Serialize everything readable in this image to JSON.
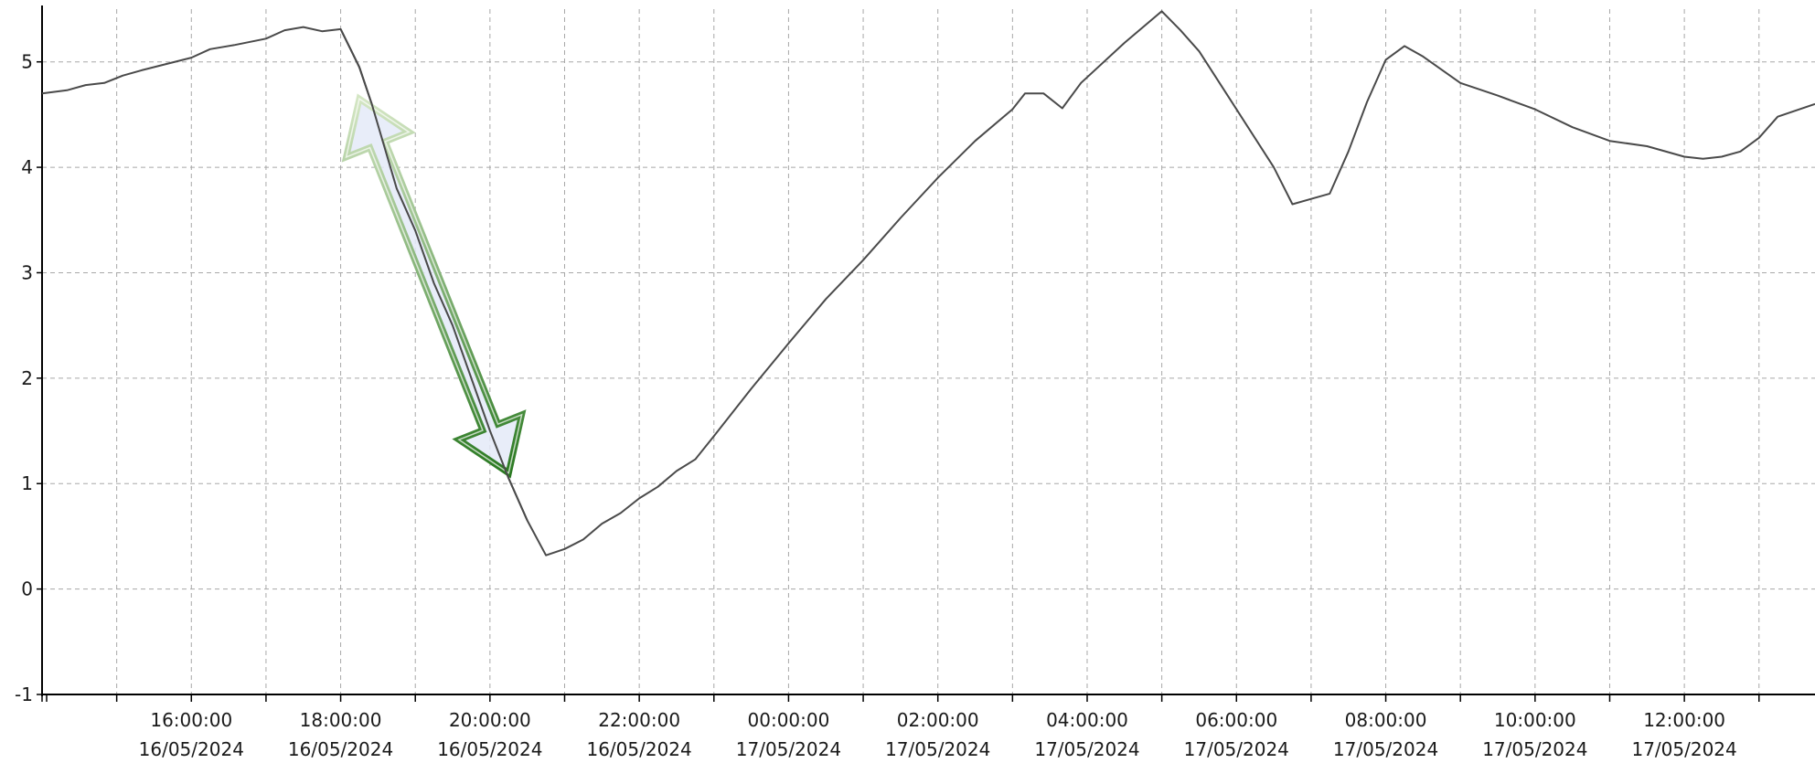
{
  "colors": {
    "background": "#ffffff",
    "series_line": "#4a4a4a",
    "grid": "#a8a8a8",
    "arrow_fill": "#e4eaf8",
    "arrow_outline_dark": "#2b7a22",
    "arrow_outline_light": "#d4e6c4"
  },
  "annotation": {
    "shape": "double-headed-arrow",
    "from": {
      "x": "2024-05-16T18:15",
      "y": 4.65
    },
    "to": {
      "x": "2024-05-16T20:15",
      "y": 1.1
    }
  },
  "chart_data": {
    "type": "line",
    "title": "",
    "xlabel": "",
    "ylabel": "",
    "xlim": [
      "2024-05-16T14:00",
      "2024-05-17T13:45"
    ],
    "ylim": [
      -1,
      5.5
    ],
    "grid": true,
    "legend": "none",
    "yticks": [
      {
        "value": -1,
        "label": "-1"
      },
      {
        "value": 0,
        "label": "0"
      },
      {
        "value": 1,
        "label": "1"
      },
      {
        "value": 2,
        "label": "2"
      },
      {
        "value": 3,
        "label": "3"
      },
      {
        "value": 4,
        "label": "4"
      },
      {
        "value": 5,
        "label": "5"
      }
    ],
    "xticks": [
      {
        "time": "2024-05-16T16:00",
        "label_time": "16:00:00",
        "label_date": "16/05/2024"
      },
      {
        "time": "2024-05-16T18:00",
        "label_time": "18:00:00",
        "label_date": "16/05/2024"
      },
      {
        "time": "2024-05-16T20:00",
        "label_time": "20:00:00",
        "label_date": "16/05/2024"
      },
      {
        "time": "2024-05-16T22:00",
        "label_time": "22:00:00",
        "label_date": "16/05/2024"
      },
      {
        "time": "2024-05-17T00:00",
        "label_time": "00:00:00",
        "label_date": "17/05/2024"
      },
      {
        "time": "2024-05-17T02:00",
        "label_time": "02:00:00",
        "label_date": "17/05/2024"
      },
      {
        "time": "2024-05-17T04:00",
        "label_time": "04:00:00",
        "label_date": "17/05/2024"
      },
      {
        "time": "2024-05-17T06:00",
        "label_time": "06:00:00",
        "label_date": "17/05/2024"
      },
      {
        "time": "2024-05-17T08:00",
        "label_time": "08:00:00",
        "label_date": "17/05/2024"
      },
      {
        "time": "2024-05-17T10:00",
        "label_time": "10:00:00",
        "label_date": "17/05/2024"
      },
      {
        "time": "2024-05-17T12:00",
        "label_time": "12:00:00",
        "label_date": "17/05/2024"
      }
    ],
    "series": [
      {
        "points": [
          [
            "2024-05-16T14:00",
            4.7
          ],
          [
            "2024-05-16T14:20",
            4.73
          ],
          [
            "2024-05-16T14:35",
            4.78
          ],
          [
            "2024-05-16T14:50",
            4.8
          ],
          [
            "2024-05-16T15:05",
            4.87
          ],
          [
            "2024-05-16T15:20",
            4.92
          ],
          [
            "2024-05-16T15:40",
            4.98
          ],
          [
            "2024-05-16T16:00",
            5.04
          ],
          [
            "2024-05-16T16:15",
            5.12
          ],
          [
            "2024-05-16T16:35",
            5.16
          ],
          [
            "2024-05-16T17:00",
            5.22
          ],
          [
            "2024-05-16T17:15",
            5.3
          ],
          [
            "2024-05-16T17:30",
            5.33
          ],
          [
            "2024-05-16T17:45",
            5.29
          ],
          [
            "2024-05-16T18:00",
            5.31
          ],
          [
            "2024-05-16T18:15",
            4.95
          ],
          [
            "2024-05-16T18:25",
            4.6
          ],
          [
            "2024-05-16T18:45",
            3.8
          ],
          [
            "2024-05-16T19:00",
            3.4
          ],
          [
            "2024-05-16T19:15",
            2.9
          ],
          [
            "2024-05-16T19:30",
            2.5
          ],
          [
            "2024-05-16T20:00",
            1.5
          ],
          [
            "2024-05-16T20:15",
            1.05
          ],
          [
            "2024-05-16T20:30",
            0.65
          ],
          [
            "2024-05-16T20:45",
            0.32
          ],
          [
            "2024-05-16T21:00",
            0.38
          ],
          [
            "2024-05-16T21:15",
            0.47
          ],
          [
            "2024-05-16T21:30",
            0.62
          ],
          [
            "2024-05-16T21:45",
            0.72
          ],
          [
            "2024-05-16T22:00",
            0.86
          ],
          [
            "2024-05-16T22:15",
            0.97
          ],
          [
            "2024-05-16T22:30",
            1.12
          ],
          [
            "2024-05-16T22:45",
            1.23
          ],
          [
            "2024-05-16T23:00",
            1.45
          ],
          [
            "2024-05-16T23:30",
            1.9
          ],
          [
            "2024-05-17T00:00",
            2.33
          ],
          [
            "2024-05-17T00:30",
            2.75
          ],
          [
            "2024-05-17T01:00",
            3.12
          ],
          [
            "2024-05-17T01:30",
            3.52
          ],
          [
            "2024-05-17T02:00",
            3.9
          ],
          [
            "2024-05-17T02:30",
            4.25
          ],
          [
            "2024-05-17T03:00",
            4.55
          ],
          [
            "2024-05-17T03:10",
            4.7
          ],
          [
            "2024-05-17T03:25",
            4.7
          ],
          [
            "2024-05-17T03:40",
            4.56
          ],
          [
            "2024-05-17T03:55",
            4.8
          ],
          [
            "2024-05-17T04:30",
            5.18
          ],
          [
            "2024-05-17T05:00",
            5.48
          ],
          [
            "2024-05-17T05:15",
            5.3
          ],
          [
            "2024-05-17T05:30",
            5.1
          ],
          [
            "2024-05-17T06:00",
            4.55
          ],
          [
            "2024-05-17T06:30",
            4.0
          ],
          [
            "2024-05-17T06:45",
            3.65
          ],
          [
            "2024-05-17T07:00",
            3.7
          ],
          [
            "2024-05-17T07:15",
            3.75
          ],
          [
            "2024-05-17T07:30",
            4.15
          ],
          [
            "2024-05-17T07:45",
            4.62
          ],
          [
            "2024-05-17T08:00",
            5.02
          ],
          [
            "2024-05-17T08:15",
            5.15
          ],
          [
            "2024-05-17T08:30",
            5.05
          ],
          [
            "2024-05-17T09:00",
            4.8
          ],
          [
            "2024-05-17T09:30",
            4.68
          ],
          [
            "2024-05-17T10:00",
            4.55
          ],
          [
            "2024-05-17T10:30",
            4.38
          ],
          [
            "2024-05-17T11:00",
            4.25
          ],
          [
            "2024-05-17T11:30",
            4.2
          ],
          [
            "2024-05-17T12:00",
            4.1
          ],
          [
            "2024-05-17T12:15",
            4.08
          ],
          [
            "2024-05-17T12:30",
            4.1
          ],
          [
            "2024-05-17T12:45",
            4.15
          ],
          [
            "2024-05-17T13:00",
            4.28
          ],
          [
            "2024-05-17T13:15",
            4.48
          ],
          [
            "2024-05-17T13:45",
            4.6
          ]
        ]
      }
    ]
  }
}
